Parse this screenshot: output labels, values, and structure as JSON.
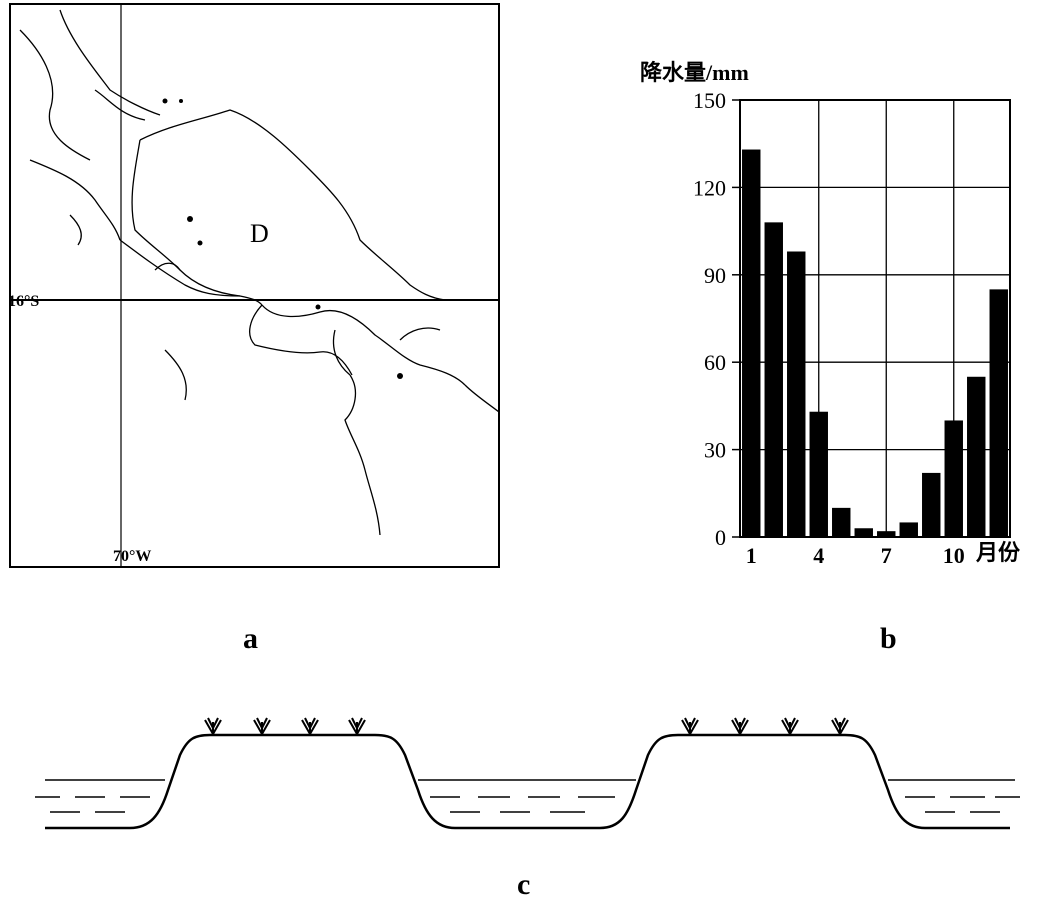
{
  "map": {
    "latitude_label": "16°S",
    "longitude_label": "70°W",
    "lake_label": "D"
  },
  "chart_data": {
    "type": "bar",
    "ylabel": "降水量/mm",
    "xlabel": "月份",
    "ylim": [
      0,
      150
    ],
    "yticks": [
      0,
      30,
      60,
      90,
      120,
      150
    ],
    "xtick_labels": [
      "1",
      "4",
      "7",
      "10"
    ],
    "xtick_months": [
      1,
      4,
      7,
      10
    ],
    "categories": [
      1,
      2,
      3,
      4,
      5,
      6,
      7,
      8,
      9,
      10,
      11,
      12
    ],
    "values": [
      133,
      108,
      98,
      43,
      10,
      3,
      2,
      5,
      22,
      40,
      55,
      85
    ],
    "grid": true
  },
  "labels": {
    "a": "a",
    "b": "b",
    "c": "c"
  }
}
